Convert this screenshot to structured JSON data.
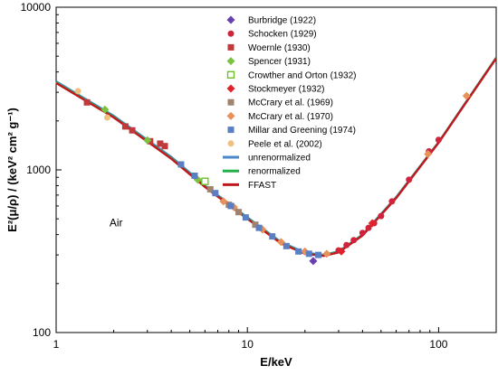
{
  "chart_data": {
    "type": "scatter",
    "xscale": "log",
    "yscale": "log",
    "xlim": [
      1,
      200
    ],
    "ylim": [
      100,
      10000
    ],
    "grid": false,
    "legend_position": "top-center",
    "xlabel": "E/keV",
    "ylabel": "E²(μ/ρ) / (keV² cm² g⁻¹)",
    "x_ticks": [
      1,
      10,
      100
    ],
    "x_tick_labels": [
      "1",
      "10",
      "100"
    ],
    "y_ticks": [
      100,
      1000,
      10000
    ],
    "y_tick_labels": [
      "100",
      "1000",
      "10000"
    ],
    "annotation": "Air",
    "series": [
      {
        "name": "Burbridge (1922)",
        "marker": "diamond",
        "color": "#6a3fb0",
        "x": [
          22.1
        ],
        "y": [
          275
        ]
      },
      {
        "name": "Schocken (1929)",
        "marker": "circle",
        "color": "#d0243c",
        "x": [
          30,
          33,
          36,
          40,
          43,
          46,
          50,
          57,
          70,
          89,
          100
        ],
        "y": [
          320,
          345,
          370,
          410,
          440,
          470,
          520,
          640,
          870,
          1300,
          1530
        ]
      },
      {
        "name": "Woernle (1930)",
        "marker": "square",
        "color": "#c0393b",
        "x": [
          1.45,
          2.3,
          2.5,
          3.1,
          3.5,
          3.7
        ],
        "y": [
          2600,
          1850,
          1750,
          1500,
          1450,
          1400
        ]
      },
      {
        "name": "Spencer (1931)",
        "marker": "diamond",
        "color": "#7cc242",
        "x": [
          1.8,
          3.0,
          5.5
        ],
        "y": [
          2350,
          1520,
          870
        ]
      },
      {
        "name": "Crowther and Orton (1932)",
        "marker": "square-open",
        "color": "#6fbf2a",
        "x": [
          6.0
        ],
        "y": [
          850
        ]
      },
      {
        "name": "Stockmeyer (1932)",
        "marker": "diamond",
        "color": "#e0222d",
        "x": [
          31,
          45
        ],
        "y": [
          315,
          470
        ]
      },
      {
        "name": "McCrary et al. (1969)",
        "marker": "square",
        "color": "#a0826d",
        "x": [
          6.4,
          8.0,
          9.0,
          11.0
        ],
        "y": [
          760,
          610,
          550,
          460
        ]
      },
      {
        "name": "McCrary et al. (1970)",
        "marker": "diamond",
        "color": "#e8915a",
        "x": [
          7.5,
          8.5,
          12.0,
          15.0,
          20.0,
          26.0,
          88.0,
          140.0
        ],
        "y": [
          640,
          590,
          430,
          360,
          315,
          305,
          1250,
          2850
        ]
      },
      {
        "name": "Millar and Greening (1974)",
        "marker": "square",
        "color": "#5a7fc2",
        "x": [
          4.5,
          5.3,
          6.8,
          8.2,
          9.8,
          11.5,
          13.5,
          16.0,
          18.5,
          21.0,
          23.5
        ],
        "y": [
          1080,
          920,
          720,
          600,
          510,
          440,
          390,
          340,
          315,
          305,
          300
        ]
      },
      {
        "name": "Peele et al. (2002)",
        "marker": "circle",
        "color": "#f0c080",
        "x": [
          1.3,
          1.85
        ],
        "y": [
          3050,
          2100
        ]
      },
      {
        "name": "unrenormalized",
        "type": "line",
        "color": "#4a86c8",
        "x": [
          1,
          2,
          4,
          6,
          10,
          15,
          20,
          25,
          30,
          40,
          60,
          100,
          200
        ],
        "y": [
          3500,
          2150,
          1200,
          800,
          510,
          360,
          310,
          300,
          315,
          400,
          680,
          1480,
          4900
        ]
      },
      {
        "name": "renormalized",
        "type": "line",
        "color": "#22b04a",
        "x": [
          1,
          2,
          4,
          6,
          10,
          15,
          20,
          25,
          30,
          40,
          60,
          100,
          200
        ],
        "y": [
          3450,
          2120,
          1180,
          790,
          505,
          356,
          307,
          298,
          313,
          398,
          675,
          1475,
          4880
        ]
      },
      {
        "name": "FFAST",
        "type": "line",
        "color": "#c0181e",
        "x": [
          1,
          2,
          4,
          6,
          10,
          15,
          20,
          25,
          30,
          40,
          60,
          100,
          200
        ],
        "y": [
          3420,
          2100,
          1170,
          785,
          500,
          353,
          305,
          296,
          311,
          395,
          672,
          1470,
          4850
        ]
      }
    ]
  }
}
